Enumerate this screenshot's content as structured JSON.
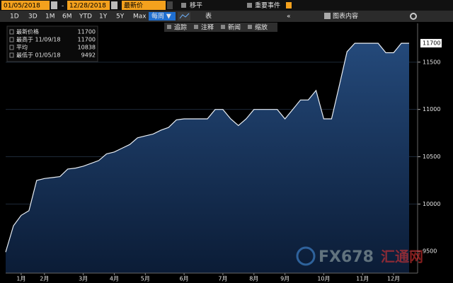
{
  "toolbar": {
    "start_date": "01/05/2018",
    "separator": "-",
    "end_date": "12/28/2018",
    "field": "最新价",
    "move": "移平",
    "events": "重要事件",
    "ranges": [
      "1D",
      "3D",
      "1M",
      "6M",
      "YTD",
      "1Y",
      "5Y",
      "Max"
    ],
    "period": "每周 ▼",
    "table": "表",
    "collapse": "«",
    "chart_content": "图表内容",
    "tools": [
      "追踪",
      "注释",
      "新闻",
      "缩放"
    ]
  },
  "legend": {
    "rows": [
      {
        "label": "最新价格",
        "value": "11700"
      },
      {
        "label": "最高于 11/09/18",
        "value": "11700"
      },
      {
        "label": "平均",
        "value": "10838"
      },
      {
        "label": "最低于 01/05/18",
        "value": "9492"
      }
    ]
  },
  "watermark": {
    "brand": "FX678",
    "site": "汇通网"
  },
  "chart_data": {
    "type": "area",
    "color": "#e8eef5",
    "fill": "#1d3c62",
    "categories": [
      null,
      null,
      "1月",
      null,
      null,
      "2月",
      null,
      null,
      null,
      null,
      "3月",
      null,
      null,
      null,
      "4月",
      null,
      null,
      null,
      "5月",
      null,
      null,
      null,
      null,
      "6月",
      null,
      null,
      null,
      null,
      "7月",
      null,
      null,
      null,
      "8月",
      null,
      null,
      null,
      "9月",
      null,
      null,
      null,
      null,
      "10月",
      null,
      null,
      null,
      null,
      "11月",
      null,
      null,
      null,
      "12月",
      null,
      null
    ],
    "values": [
      9492,
      9770,
      9880,
      9930,
      10250,
      10270,
      10280,
      10290,
      10370,
      10380,
      10400,
      10430,
      10460,
      10530,
      10550,
      10590,
      10630,
      10700,
      10720,
      10740,
      10780,
      10810,
      10890,
      10900,
      10900,
      10900,
      10900,
      11000,
      11000,
      10900,
      10830,
      10900,
      11000,
      11000,
      11000,
      11000,
      10900,
      11000,
      11100,
      11100,
      11200,
      10900,
      10900,
      11250,
      11610,
      11700,
      11700,
      11700,
      11700,
      11600,
      11600,
      11700,
      11700
    ],
    "ylim": [
      9270,
      11910
    ],
    "yticks": [
      9500,
      10000,
      10500,
      11000,
      11500
    ],
    "grid": true
  }
}
